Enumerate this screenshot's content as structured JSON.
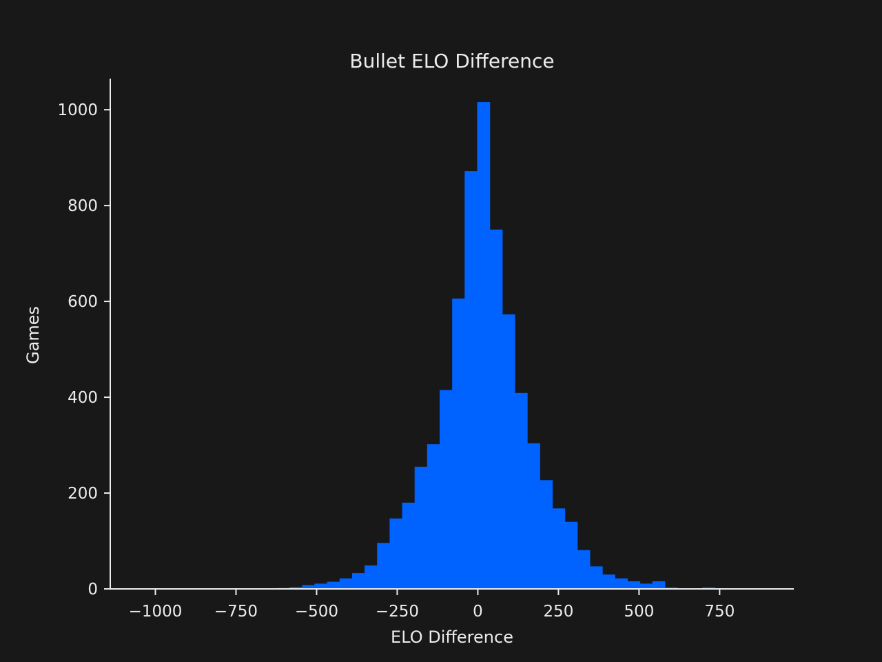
{
  "chart_data": {
    "type": "bar",
    "subtype": "histogram",
    "title": "Bullet ELO Difference",
    "xlabel": "ELO Difference",
    "ylabel": "Games",
    "xlim": [
      -1140,
      980
    ],
    "ylim": [
      0,
      1065
    ],
    "grid": false,
    "legend": "none",
    "bar_color": "#0062ff",
    "background_color": "#181818",
    "text_color": "#ececec",
    "bin_width": 38.8,
    "x_ticks": [
      {
        "value": -1000,
        "label": "−1000"
      },
      {
        "value": -750,
        "label": "−750"
      },
      {
        "value": -500,
        "label": "−500"
      },
      {
        "value": -250,
        "label": "−250"
      },
      {
        "value": 0,
        "label": "0"
      },
      {
        "value": 250,
        "label": "250"
      },
      {
        "value": 500,
        "label": "500"
      },
      {
        "value": 750,
        "label": "750"
      }
    ],
    "y_ticks": [
      {
        "value": 0,
        "label": "0"
      },
      {
        "value": 200,
        "label": "200"
      },
      {
        "value": 400,
        "label": "400"
      },
      {
        "value": 600,
        "label": "600"
      },
      {
        "value": 800,
        "label": "800"
      },
      {
        "value": 1000,
        "label": "1000"
      }
    ],
    "bins": [
      {
        "x0": -739.2,
        "count": 1
      },
      {
        "x0": -700.4,
        "count": 1
      },
      {
        "x0": -661.6,
        "count": 1
      },
      {
        "x0": -622.8,
        "count": 2
      },
      {
        "x0": -584.0,
        "count": 4
      },
      {
        "x0": -545.2,
        "count": 8
      },
      {
        "x0": -506.4,
        "count": 11
      },
      {
        "x0": -467.6,
        "count": 15
      },
      {
        "x0": -428.8,
        "count": 22
      },
      {
        "x0": -390.0,
        "count": 33
      },
      {
        "x0": -351.2,
        "count": 49
      },
      {
        "x0": -312.4,
        "count": 96
      },
      {
        "x0": -273.6,
        "count": 147
      },
      {
        "x0": -234.8,
        "count": 180
      },
      {
        "x0": -196.0,
        "count": 255
      },
      {
        "x0": -157.2,
        "count": 302
      },
      {
        "x0": -118.4,
        "count": 415
      },
      {
        "x0": -79.6,
        "count": 606
      },
      {
        "x0": -40.8,
        "count": 872
      },
      {
        "x0": -2.0,
        "count": 1016
      },
      {
        "x0": 36.8,
        "count": 750
      },
      {
        "x0": 75.6,
        "count": 573
      },
      {
        "x0": 114.4,
        "count": 409
      },
      {
        "x0": 153.2,
        "count": 304
      },
      {
        "x0": 192.0,
        "count": 227
      },
      {
        "x0": 230.8,
        "count": 168
      },
      {
        "x0": 269.6,
        "count": 140
      },
      {
        "x0": 308.4,
        "count": 81
      },
      {
        "x0": 347.2,
        "count": 47
      },
      {
        "x0": 386.0,
        "count": 30
      },
      {
        "x0": 424.8,
        "count": 22
      },
      {
        "x0": 463.6,
        "count": 16
      },
      {
        "x0": 502.4,
        "count": 11
      },
      {
        "x0": 541.2,
        "count": 16
      },
      {
        "x0": 580.0,
        "count": 3
      },
      {
        "x0": 618.8,
        "count": 1
      },
      {
        "x0": 657.6,
        "count": 1
      },
      {
        "x0": 696.4,
        "count": 3
      },
      {
        "x0": 735.2,
        "count": 1
      }
    ]
  }
}
